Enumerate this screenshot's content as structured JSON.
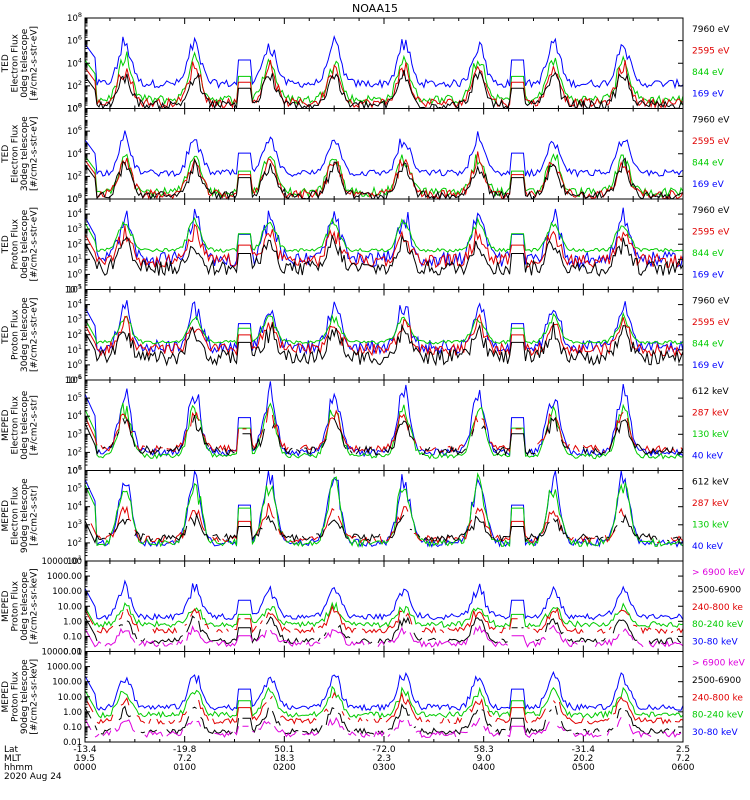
{
  "chart_data": [
    {
      "type": "line",
      "title": "NOAA15",
      "ylabel": "TED Electron Flux 0deg telescope [#/cm2-s-str-eV]",
      "scale": "log",
      "ylim": [
        1,
        100000000
      ],
      "ticks": [
        "10^0",
        "10^2",
        "10^4",
        "10^6",
        "10^8"
      ],
      "tick_exps": [
        0,
        2,
        4,
        6,
        8
      ],
      "legend": [
        {
          "label": "7960 eV",
          "color": "#000000"
        },
        {
          "label": "2595 eV",
          "color": "#e00000"
        },
        {
          "label": "844 eV",
          "color": "#00cc00"
        },
        {
          "label": "169 eV",
          "color": "#0000ff"
        }
      ],
      "series": [
        {
          "name": "169 eV",
          "color": "#0000ff",
          "base": 2.2,
          "peak": 6.0,
          "noise": 0.35
        },
        {
          "name": "844 eV",
          "color": "#00cc00",
          "base": 0.8,
          "peak": 4.5,
          "noise": 0.4
        },
        {
          "name": "2595 eV",
          "color": "#e00000",
          "base": 0.5,
          "peak": 3.8,
          "noise": 0.4
        },
        {
          "name": "7960 eV",
          "color": "#000000",
          "base": 0.3,
          "peak": 3.0,
          "noise": 0.4
        }
      ]
    },
    {
      "type": "line",
      "ylabel": "TED Electron Flux 30deg telescope [#/cm2-s-str-eV]",
      "scale": "log",
      "ylim": [
        1,
        100000000
      ],
      "ticks": [
        "10^0",
        "10^2",
        "10^4",
        "10^6",
        "10^8"
      ],
      "tick_exps": [
        0,
        2,
        4,
        6,
        8
      ],
      "legend": [
        {
          "label": "7960 eV",
          "color": "#000000"
        },
        {
          "label": "2595 eV",
          "color": "#e00000"
        },
        {
          "label": "844 eV",
          "color": "#00cc00"
        },
        {
          "label": "169 eV",
          "color": "#0000ff"
        }
      ],
      "series": [
        {
          "name": "169 eV",
          "color": "#0000ff",
          "base": 2.3,
          "peak": 5.5,
          "noise": 0.3
        },
        {
          "name": "844 eV",
          "color": "#00cc00",
          "base": 0.6,
          "peak": 4.0,
          "noise": 0.4
        },
        {
          "name": "2595 eV",
          "color": "#e00000",
          "base": 0.4,
          "peak": 3.6,
          "noise": 0.4
        },
        {
          "name": "7960 eV",
          "color": "#000000",
          "base": 0.3,
          "peak": 3.2,
          "noise": 0.4
        }
      ]
    },
    {
      "type": "line",
      "ylabel": "TED Proton Flux 0deg telescope [#/cm2-s-str-eV]",
      "scale": "log",
      "ylim": [
        0.1,
        100000
      ],
      "ticks": [
        "10^-1",
        "10^0",
        "10^1",
        "10^2",
        "10^3",
        "10^4",
        "10^5"
      ],
      "tick_exps": [
        -1,
        0,
        1,
        2,
        3,
        4,
        5
      ],
      "legend": [
        {
          "label": "7960 eV",
          "color": "#000000"
        },
        {
          "label": "2595 eV",
          "color": "#e00000"
        },
        {
          "label": "844 eV",
          "color": "#00cc00"
        },
        {
          "label": "169 eV",
          "color": "#0000ff"
        }
      ],
      "series": [
        {
          "name": "169 eV",
          "color": "#0000ff",
          "base": 1.0,
          "peak": 4.0,
          "noise": 0.5
        },
        {
          "name": "844 eV",
          "color": "#00cc00",
          "base": 1.6,
          "peak": 3.6,
          "noise": 0.12
        },
        {
          "name": "2595 eV",
          "color": "#e00000",
          "base": 0.9,
          "peak": 2.8,
          "noise": 0.45
        },
        {
          "name": "7960 eV",
          "color": "#000000",
          "base": 0.4,
          "peak": 2.2,
          "noise": 0.5
        }
      ]
    },
    {
      "type": "line",
      "ylabel": "TED Proton Flux 30deg telescope [#/cm2-s-str-eV]",
      "scale": "log",
      "ylim": [
        0.1,
        100000
      ],
      "ticks": [
        "10^-1",
        "10^0",
        "10^1",
        "10^2",
        "10^3",
        "10^4",
        "10^5"
      ],
      "tick_exps": [
        -1,
        0,
        1,
        2,
        3,
        4,
        5
      ],
      "legend": [
        {
          "label": "7960 eV",
          "color": "#000000"
        },
        {
          "label": "2595 eV",
          "color": "#e00000"
        },
        {
          "label": "844 eV",
          "color": "#00cc00"
        },
        {
          "label": "169 eV",
          "color": "#0000ff"
        }
      ],
      "series": [
        {
          "name": "169 eV",
          "color": "#0000ff",
          "base": 1.2,
          "peak": 4.0,
          "noise": 0.45
        },
        {
          "name": "844 eV",
          "color": "#00cc00",
          "base": 1.5,
          "peak": 3.2,
          "noise": 0.12
        },
        {
          "name": "2595 eV",
          "color": "#e00000",
          "base": 1.0,
          "peak": 2.8,
          "noise": 0.4
        },
        {
          "name": "7960 eV",
          "color": "#000000",
          "base": 0.5,
          "peak": 2.3,
          "noise": 0.5
        }
      ]
    },
    {
      "type": "line",
      "ylabel": "MEPED Electron Flux 0deg telescope [#/cm2-s-str]",
      "scale": "log",
      "ylim": [
        10,
        1000000
      ],
      "ticks": [
        "10^1",
        "10^2",
        "10^3",
        "10^4",
        "10^5",
        "10^6"
      ],
      "tick_exps": [
        1,
        2,
        3,
        4,
        5,
        6
      ],
      "legend": [
        {
          "label": "612 keV",
          "color": "#000000"
        },
        {
          "label": "287 keV",
          "color": "#e00000"
        },
        {
          "label": "130 keV",
          "color": "#00cc00"
        },
        {
          "label": "40 keV",
          "color": "#0000ff"
        }
      ],
      "series": [
        {
          "name": "40 keV",
          "color": "#0000ff",
          "base": 2.0,
          "peak": 5.5,
          "noise": 0.2
        },
        {
          "name": "130 keV",
          "color": "#00cc00",
          "base": 1.8,
          "peak": 4.6,
          "noise": 0.15
        },
        {
          "name": "287 keV",
          "color": "#e00000",
          "base": 2.2,
          "peak": 4.2,
          "noise": 0.2
        },
        {
          "name": "612 keV",
          "color": "#000000",
          "base": 2.1,
          "peak": 3.8,
          "noise": 0.25
        }
      ]
    },
    {
      "type": "line",
      "ylabel": "MEPED Electron Flux 90deg telescope [#/cm2-s-str]",
      "scale": "log",
      "ylim": [
        10,
        1000000
      ],
      "ticks": [
        "10^1",
        "10^2",
        "10^3",
        "10^4",
        "10^5",
        "10^6"
      ],
      "tick_exps": [
        1,
        2,
        3,
        4,
        5,
        6
      ],
      "legend": [
        {
          "label": "612 keV",
          "color": "#000000"
        },
        {
          "label": "287 keV",
          "color": "#e00000"
        },
        {
          "label": "130 keV",
          "color": "#00cc00"
        },
        {
          "label": "40 keV",
          "color": "#0000ff"
        }
      ],
      "series": [
        {
          "name": "40 keV",
          "color": "#0000ff",
          "base": 2.0,
          "peak": 5.8,
          "noise": 0.2
        },
        {
          "name": "130 keV",
          "color": "#00cc00",
          "base": 2.0,
          "peak": 5.5,
          "noise": 0.2
        },
        {
          "name": "287 keV",
          "color": "#e00000",
          "base": 2.2,
          "peak": 4.0,
          "noise": 0.2
        },
        {
          "name": "612 keV",
          "color": "#000000",
          "base": 2.3,
          "peak": 3.4,
          "noise": 0.2
        }
      ]
    },
    {
      "type": "line",
      "ylabel": "MEPED Proton Flux 0deg telescope [#/cm2-s-sr-keV]",
      "scale": "log",
      "ylim": [
        0.01,
        10000
      ],
      "ticks": [
        "0.01",
        "0.10",
        "1.00",
        "10.00",
        "100.00",
        "1000.00",
        "10000.00"
      ],
      "tick_exps": [
        -2,
        -1,
        0,
        1,
        2,
        3,
        4
      ],
      "legend": [
        {
          "label": "> 6900 keV",
          "color": "#dd00dd"
        },
        {
          "label": "2500-6900",
          "color": "#000000"
        },
        {
          "label": "240-800 ke",
          "color": "#e00000"
        },
        {
          "label": "80-240 keV",
          "color": "#00cc00"
        },
        {
          "label": "30-80 keV",
          "color": "#0000ff"
        }
      ],
      "series": [
        {
          "name": "30-80 keV",
          "color": "#0000ff",
          "base": 0.3,
          "peak": 2.3,
          "noise": 0.2
        },
        {
          "name": "80-240 keV",
          "color": "#00cc00",
          "base": -0.2,
          "peak": 1.0,
          "noise": 0.2
        },
        {
          "name": "240-800 ke",
          "color": "#e00000",
          "base": -0.6,
          "peak": 0.8,
          "noise": 0.2
        },
        {
          "name": "2500-6900",
          "color": "#000000",
          "base": -1.3,
          "peak": 0.3,
          "noise": 0.2
        },
        {
          "name": "> 6900 keV",
          "color": "#dd00dd",
          "base": -1.5,
          "peak": -0.5,
          "noise": 0.2
        }
      ]
    },
    {
      "type": "line",
      "ylabel": "MEPED Proton Flux 90deg telescope [#/cm2-s-sr-keV]",
      "scale": "log",
      "ylim": [
        0.01,
        10000
      ],
      "ticks": [
        "0.01",
        "0.10",
        "1.00",
        "10.00",
        "100.00",
        "1000.00",
        "10000.00"
      ],
      "tick_exps": [
        -2,
        -1,
        0,
        1,
        2,
        3,
        4
      ],
      "legend": [
        {
          "label": "> 6900 keV",
          "color": "#dd00dd"
        },
        {
          "label": "2500-6900",
          "color": "#000000"
        },
        {
          "label": "240-800 ke",
          "color": "#e00000"
        },
        {
          "label": "80-240 keV",
          "color": "#00cc00"
        },
        {
          "label": "30-80 keV",
          "color": "#0000ff"
        }
      ],
      "series": [
        {
          "name": "30-80 keV",
          "color": "#0000ff",
          "base": 0.3,
          "peak": 2.5,
          "noise": 0.2
        },
        {
          "name": "80-240 keV",
          "color": "#00cc00",
          "base": -0.2,
          "peak": 1.5,
          "noise": 0.2
        },
        {
          "name": "240-800 ke",
          "color": "#e00000",
          "base": -0.6,
          "peak": 1.0,
          "noise": 0.2
        },
        {
          "name": "2500-6900",
          "color": "#000000",
          "base": -1.3,
          "peak": 0.3,
          "noise": 0.2
        },
        {
          "name": "> 6900 keV",
          "color": "#dd00dd",
          "base": -1.5,
          "peak": -0.5,
          "noise": 0.2
        }
      ]
    }
  ],
  "x_axis": {
    "row_labels": [
      "Lat",
      "MLT",
      "hhmm"
    ],
    "date": "2020 Aug 24",
    "ticks": [
      {
        "lat": "-13.4",
        "mlt": "19.5",
        "hhmm": "0000"
      },
      {
        "lat": "-19.8",
        "mlt": "7.2",
        "hhmm": "0100"
      },
      {
        "lat": "50.1",
        "mlt": "18.3",
        "hhmm": "0200"
      },
      {
        "lat": "-72.0",
        "mlt": "2.3",
        "hhmm": "0300"
      },
      {
        "lat": "58.3",
        "mlt": "9.0",
        "hhmm": "0400"
      },
      {
        "lat": "-31.4",
        "mlt": "20.2",
        "hhmm": "0500"
      },
      {
        "lat": "2.5",
        "mlt": "7.2",
        "hhmm": "0600"
      }
    ],
    "xlim_hours": [
      0,
      6
    ],
    "auroral_pass_hours": [
      0.4,
      1.1,
      1.85,
      2.5,
      3.2,
      3.95,
      4.7,
      5.4
    ],
    "gap_hours": [
      1.6,
      4.35
    ]
  }
}
